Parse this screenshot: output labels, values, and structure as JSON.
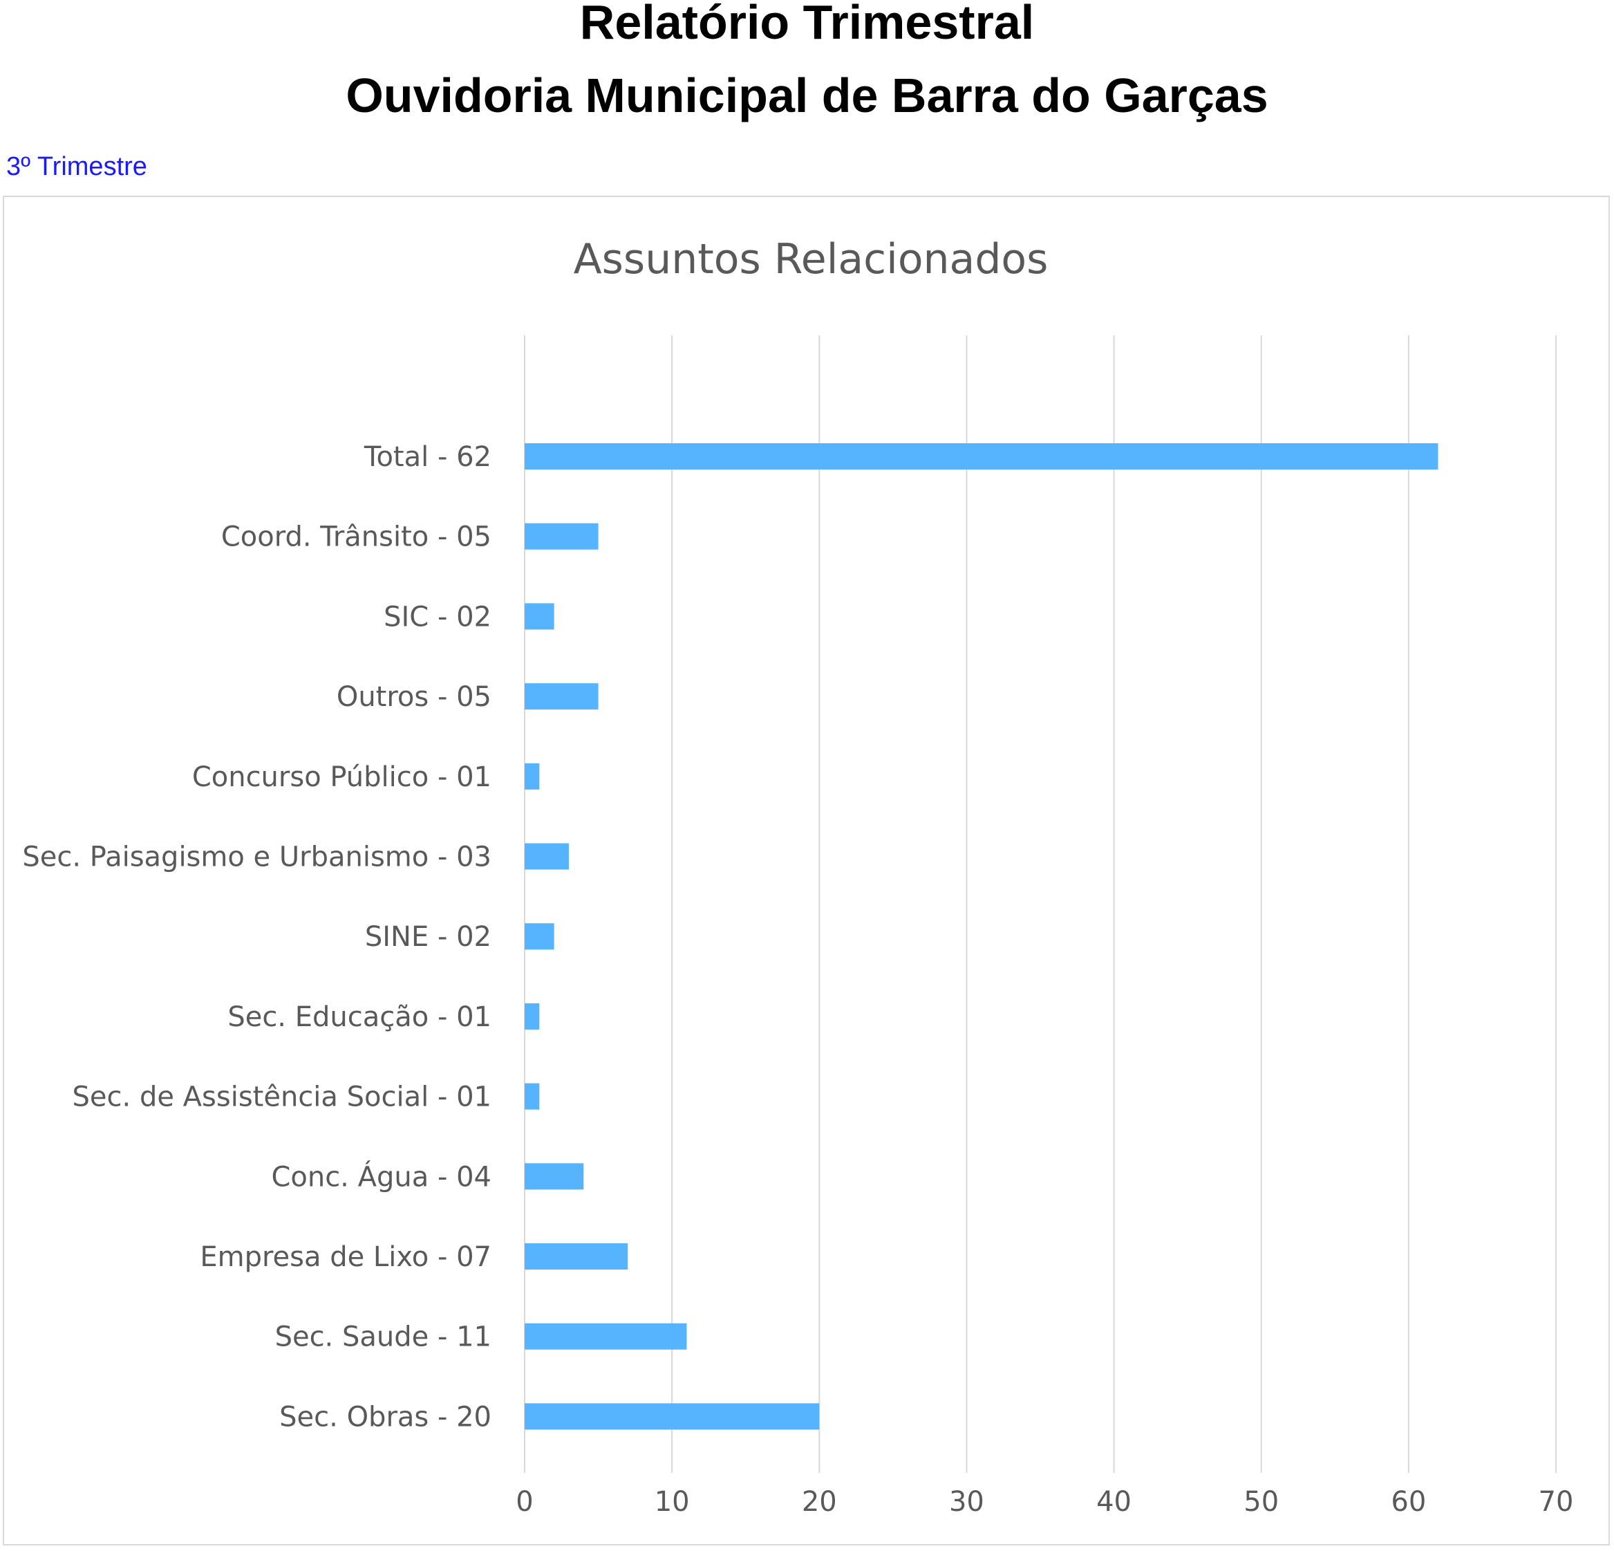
{
  "header": {
    "title_line1": "Relatório Trimestral",
    "title_line2": "Ouvidoria Municipal de Barra do Garças",
    "period": "3º Trimestre"
  },
  "colors": {
    "bar": "#56b4ff",
    "period_text": "#1a1aff"
  },
  "chart_data": {
    "type": "bar",
    "orientation": "horizontal",
    "title": "Assuntos Relacionados",
    "categories": [
      "Total - 62",
      "Coord. Trânsito - 05",
      "SIC - 02",
      "Outros - 05",
      "Concurso Público - 01",
      "Sec. Paisagismo e Urbanismo - 03",
      "SINE - 02",
      "Sec. Educação - 01",
      "Sec. de Assistência Social - 01",
      "Conc. Água - 04",
      "Empresa de Lixo - 07",
      "Sec. Saude - 11",
      "Sec. Obras - 20"
    ],
    "values": [
      62,
      5,
      2,
      5,
      1,
      3,
      2,
      1,
      1,
      4,
      7,
      11,
      20
    ],
    "xlim": [
      0,
      70
    ],
    "xticks": [
      "0",
      "10",
      "20",
      "30",
      "40",
      "50",
      "60",
      "70"
    ],
    "grid": "vertical",
    "xlabel": "",
    "ylabel": ""
  }
}
